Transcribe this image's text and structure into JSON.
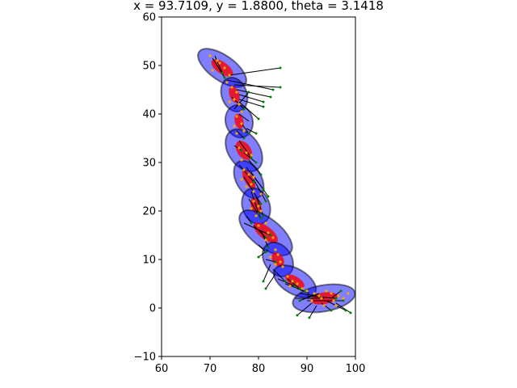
{
  "chart_data": {
    "type": "scatter",
    "title": "x = 93.7109, y = 1.8800, theta = 3.1418",
    "xlabel": "",
    "ylabel": "",
    "xlim": [
      60,
      100
    ],
    "ylim": [
      -10,
      60
    ],
    "xticks": [
      60,
      70,
      80,
      90,
      100
    ],
    "yticks": [
      -10,
      0,
      10,
      20,
      30,
      40,
      50,
      60
    ],
    "xtick_labels": [
      "60",
      "70",
      "80",
      "90",
      "100"
    ],
    "ytick_labels": [
      "−10",
      "0",
      "10",
      "20",
      "30",
      "40",
      "50",
      "60"
    ],
    "grid": false,
    "colors": {
      "outer_ellipse": "#0000ff",
      "inner_ellipse": "#ff0000",
      "landmark_point": "#ffa500",
      "feature_point": "#008000",
      "ray": "#000000"
    },
    "pose_ellipses": [
      {
        "cx": 72.5,
        "cy": 49.5,
        "rx": 5.8,
        "ry": 2.6,
        "angle_deg": -35,
        "irx": 2.6,
        "iry": 1.2
      },
      {
        "cx": 75.0,
        "cy": 44.0,
        "rx": 3.6,
        "ry": 2.6,
        "angle_deg": -70,
        "irx": 1.8,
        "iry": 1.0
      },
      {
        "cx": 76.0,
        "cy": 38.5,
        "rx": 3.4,
        "ry": 2.8,
        "angle_deg": -75,
        "irx": 1.6,
        "iry": 0.9
      },
      {
        "cx": 77.0,
        "cy": 32.5,
        "rx": 4.8,
        "ry": 3.2,
        "angle_deg": -55,
        "irx": 2.2,
        "iry": 1.4
      },
      {
        "cx": 78.0,
        "cy": 26.5,
        "rx": 4.2,
        "ry": 2.6,
        "angle_deg": -60,
        "irx": 2.2,
        "iry": 0.9
      },
      {
        "cx": 79.5,
        "cy": 21.0,
        "rx": 3.8,
        "ry": 2.8,
        "angle_deg": -70,
        "irx": 1.8,
        "iry": 1.0
      },
      {
        "cx": 81.5,
        "cy": 15.5,
        "rx": 6.5,
        "ry": 3.0,
        "angle_deg": -38,
        "irx": 3.0,
        "iry": 1.3
      },
      {
        "cx": 84.0,
        "cy": 10.0,
        "rx": 3.8,
        "ry": 2.8,
        "angle_deg": -55,
        "irx": 1.6,
        "iry": 1.1
      },
      {
        "cx": 87.5,
        "cy": 5.5,
        "rx": 4.8,
        "ry": 2.6,
        "angle_deg": -30,
        "irx": 2.2,
        "iry": 1.0
      },
      {
        "cx": 93.5,
        "cy": 2.0,
        "rx": 6.5,
        "ry": 2.7,
        "angle_deg": 10,
        "irx": 2.8,
        "iry": 1.2
      }
    ],
    "rays": [
      [
        [
          70.5,
          51.5
        ],
        [
          73.0,
          47.5
        ]
      ],
      [
        [
          71.0,
          52.0
        ],
        [
          72.5,
          48.5
        ]
      ],
      [
        [
          74.0,
          48.0
        ],
        [
          84.5,
          49.5
        ]
      ],
      [
        [
          73.5,
          47.0
        ],
        [
          83.0,
          45.0
        ]
      ],
      [
        [
          75.0,
          46.0
        ],
        [
          84.5,
          45.5
        ]
      ],
      [
        [
          75.5,
          45.0
        ],
        [
          82.5,
          43.5
        ]
      ],
      [
        [
          76.0,
          44.0
        ],
        [
          81.0,
          42.5
        ]
      ],
      [
        [
          76.0,
          43.0
        ],
        [
          81.0,
          41.5
        ]
      ],
      [
        [
          75.0,
          41.0
        ],
        [
          78.0,
          44.5
        ]
      ],
      [
        [
          76.0,
          42.5
        ],
        [
          80.0,
          39.0
        ]
      ],
      [
        [
          74.5,
          43.5
        ],
        [
          77.0,
          41.0
        ]
      ],
      [
        [
          76.0,
          40.0
        ],
        [
          78.0,
          38.5
        ]
      ],
      [
        [
          76.5,
          38.0
        ],
        [
          78.0,
          36.0
        ]
      ],
      [
        [
          77.5,
          37.0
        ],
        [
          79.5,
          36.0
        ]
      ],
      [
        [
          75.5,
          36.5
        ],
        [
          77.0,
          35.0
        ]
      ],
      [
        [
          76.0,
          34.5
        ],
        [
          78.5,
          31.0
        ]
      ],
      [
        [
          75.0,
          33.5
        ],
        [
          76.5,
          32.5
        ]
      ],
      [
        [
          77.0,
          32.0
        ],
        [
          79.5,
          30.0
        ]
      ],
      [
        [
          78.0,
          30.5
        ],
        [
          80.5,
          27.5
        ]
      ],
      [
        [
          76.0,
          29.5
        ],
        [
          79.0,
          26.0
        ]
      ],
      [
        [
          77.5,
          29.0
        ],
        [
          81.0,
          24.5
        ]
      ],
      [
        [
          78.5,
          28.0
        ],
        [
          82.0,
          23.0
        ]
      ],
      [
        [
          77.0,
          27.0
        ],
        [
          80.5,
          21.5
        ]
      ],
      [
        [
          79.0,
          26.5
        ],
        [
          81.5,
          22.0
        ]
      ],
      [
        [
          78.5,
          24.0
        ],
        [
          80.0,
          19.5
        ]
      ],
      [
        [
          79.5,
          23.0
        ],
        [
          81.0,
          19.0
        ]
      ],
      [
        [
          78.0,
          22.5
        ],
        [
          80.5,
          18.5
        ]
      ],
      [
        [
          77.5,
          19.0
        ],
        [
          78.5,
          17.5
        ]
      ],
      [
        [
          77.0,
          17.5
        ],
        [
          82.5,
          15.0
        ]
      ],
      [
        [
          79.0,
          17.0
        ],
        [
          81.5,
          14.5
        ]
      ],
      [
        [
          80.5,
          16.0
        ],
        [
          82.0,
          12.5
        ]
      ],
      [
        [
          80.0,
          13.0
        ],
        [
          81.5,
          11.5
        ]
      ],
      [
        [
          80.0,
          10.5
        ],
        [
          82.0,
          12.0
        ]
      ],
      [
        [
          81.5,
          10.0
        ],
        [
          83.5,
          9.5
        ]
      ],
      [
        [
          82.5,
          9.0
        ],
        [
          81.0,
          5.5
        ]
      ],
      [
        [
          83.0,
          8.0
        ],
        [
          85.5,
          5.5
        ]
      ],
      [
        [
          83.5,
          7.0
        ],
        [
          81.5,
          4.0
        ]
      ],
      [
        [
          84.0,
          6.0
        ],
        [
          87.5,
          4.5
        ]
      ],
      [
        [
          86.0,
          6.0
        ],
        [
          88.5,
          4.0
        ]
      ],
      [
        [
          85.5,
          5.0
        ],
        [
          89.5,
          3.5
        ]
      ],
      [
        [
          88.0,
          4.0
        ],
        [
          90.5,
          3.0
        ]
      ],
      [
        [
          88.5,
          3.0
        ],
        [
          92.0,
          2.5
        ]
      ],
      [
        [
          87.5,
          2.0
        ],
        [
          93.5,
          2.0
        ]
      ],
      [
        [
          90.0,
          2.5
        ],
        [
          96.0,
          2.0
        ]
      ],
      [
        [
          90.0,
          1.5
        ],
        [
          97.5,
          1.5
        ]
      ],
      [
        [
          91.0,
          1.0
        ],
        [
          88.0,
          -1.5
        ]
      ],
      [
        [
          92.0,
          0.5
        ],
        [
          90.5,
          -2.0
        ]
      ],
      [
        [
          93.0,
          1.0
        ],
        [
          95.0,
          -0.5
        ]
      ],
      [
        [
          94.0,
          1.5
        ],
        [
          98.0,
          -0.5
        ]
      ],
      [
        [
          95.0,
          2.0
        ],
        [
          97.0,
          3.5
        ]
      ],
      [
        [
          96.0,
          1.0
        ],
        [
          99.0,
          -1.0
        ]
      ],
      [
        [
          92.5,
          3.0
        ],
        [
          88.5,
          1.5
        ]
      ]
    ],
    "landmarks": [
      [
        70.0,
        52.0
      ],
      [
        71.5,
        51.0
      ],
      [
        72.0,
        50.5
      ],
      [
        73.0,
        49.5
      ],
      [
        70.5,
        49.0
      ],
      [
        74.0,
        48.0
      ],
      [
        73.5,
        46.5
      ],
      [
        74.5,
        45.5
      ],
      [
        75.5,
        44.5
      ],
      [
        75.0,
        43.0
      ],
      [
        76.0,
        42.0
      ],
      [
        74.0,
        42.5
      ],
      [
        76.5,
        40.5
      ],
      [
        75.5,
        39.5
      ],
      [
        76.5,
        38.0
      ],
      [
        75.0,
        37.5
      ],
      [
        77.0,
        36.5
      ],
      [
        75.5,
        36.0
      ],
      [
        76.0,
        33.0
      ],
      [
        77.5,
        32.0
      ],
      [
        78.5,
        31.5
      ],
      [
        76.5,
        30.5
      ],
      [
        77.0,
        28.5
      ],
      [
        78.0,
        27.5
      ],
      [
        79.0,
        27.0
      ],
      [
        76.5,
        26.5
      ],
      [
        78.5,
        25.5
      ],
      [
        77.5,
        25.0
      ],
      [
        79.0,
        24.0
      ],
      [
        80.5,
        23.5
      ],
      [
        79.0,
        22.0
      ],
      [
        80.0,
        21.0
      ],
      [
        78.5,
        20.5
      ],
      [
        80.5,
        20.0
      ],
      [
        79.5,
        19.0
      ],
      [
        81.5,
        17.5
      ],
      [
        80.0,
        17.0
      ],
      [
        82.0,
        15.5
      ],
      [
        83.0,
        14.5
      ],
      [
        81.5,
        14.0
      ],
      [
        83.5,
        12.0
      ],
      [
        84.0,
        11.0
      ],
      [
        82.5,
        10.5
      ],
      [
        84.5,
        9.5
      ],
      [
        83.5,
        9.0
      ],
      [
        85.0,
        8.5
      ],
      [
        86.0,
        6.5
      ],
      [
        87.0,
        5.5
      ],
      [
        88.0,
        5.0
      ],
      [
        86.5,
        4.5
      ],
      [
        89.0,
        4.0
      ],
      [
        90.0,
        3.5
      ],
      [
        91.5,
        3.0
      ],
      [
        92.5,
        2.5
      ],
      [
        93.0,
        2.0
      ],
      [
        94.0,
        3.5
      ],
      [
        95.0,
        3.0
      ],
      [
        95.5,
        1.5
      ],
      [
        96.5,
        2.5
      ],
      [
        97.5,
        2.0
      ],
      [
        91.0,
        1.5
      ],
      [
        93.5,
        0.5
      ],
      [
        96.0,
        0.5
      ],
      [
        98.5,
        3.0
      ]
    ],
    "features": [
      [
        84.5,
        49.5
      ],
      [
        83.0,
        45.0
      ],
      [
        84.5,
        45.5
      ],
      [
        82.5,
        43.5
      ],
      [
        81.0,
        42.5
      ],
      [
        81.0,
        41.5
      ],
      [
        80.0,
        39.0
      ],
      [
        78.0,
        44.5
      ],
      [
        78.0,
        36.0
      ],
      [
        79.5,
        36.0
      ],
      [
        78.5,
        31.0
      ],
      [
        80.5,
        27.5
      ],
      [
        81.0,
        24.5
      ],
      [
        82.0,
        23.0
      ],
      [
        80.5,
        21.5
      ],
      [
        81.5,
        22.0
      ],
      [
        80.0,
        19.5
      ],
      [
        81.0,
        19.0
      ],
      [
        80.5,
        18.5
      ],
      [
        82.5,
        15.0
      ],
      [
        81.5,
        14.5
      ],
      [
        82.0,
        12.5
      ],
      [
        81.5,
        11.5
      ],
      [
        80.0,
        10.5
      ],
      [
        81.0,
        5.5
      ],
      [
        85.5,
        5.5
      ],
      [
        81.5,
        4.0
      ],
      [
        87.5,
        4.5
      ],
      [
        88.5,
        4.0
      ],
      [
        89.5,
        3.5
      ],
      [
        88.0,
        -1.5
      ],
      [
        90.5,
        -2.0
      ],
      [
        95.0,
        -0.5
      ],
      [
        98.0,
        -0.5
      ],
      [
        99.0,
        -1.0
      ],
      [
        97.0,
        3.5
      ],
      [
        88.5,
        1.5
      ],
      [
        73.0,
        47.5
      ],
      [
        72.5,
        48.5
      ],
      [
        77.0,
        41.0
      ],
      [
        77.0,
        35.0
      ],
      [
        76.5,
        32.5
      ],
      [
        79.5,
        30.0
      ],
      [
        79.0,
        26.0
      ],
      [
        78.5,
        17.5
      ],
      [
        83.5,
        9.5
      ],
      [
        97.5,
        1.5
      ],
      [
        96.0,
        2.0
      ]
    ]
  }
}
